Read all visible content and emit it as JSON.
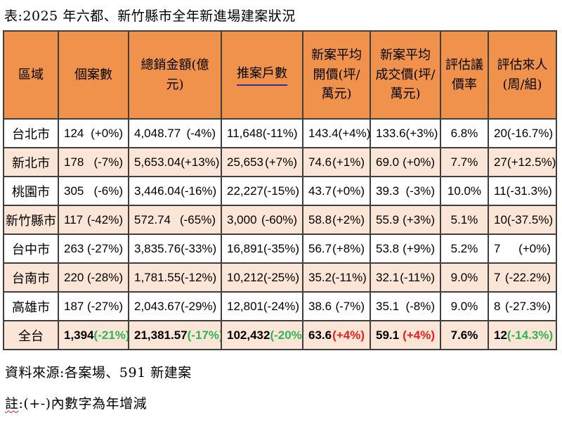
{
  "title": "表:2025 年六都、新竹縣市全年新進場建案狀況",
  "colors": {
    "header_bg": "#F0914C",
    "alt_row_bg": "#FBE5D6",
    "border": "#3F3F3F",
    "green": "#2FB457",
    "red": "#E8201D",
    "header_underline": "#31309B"
  },
  "table": {
    "columns": [
      "區域",
      "個案數",
      "總銷金額(億元)",
      "推案戶數",
      "新案平均開價(坪/萬元)",
      "新案平均成交價(坪/萬元)",
      "評估議價率",
      "評估來人(周/組)"
    ],
    "rows": [
      {
        "region": "台北市",
        "total": false,
        "cells": [
          {
            "v": "124",
            "p": "(+0%)"
          },
          {
            "v": "4,048.77",
            "p": "(-4%)"
          },
          {
            "v": "11,648",
            "p": "(-11%)"
          },
          {
            "v": "143.4",
            "p": "(+4%)"
          },
          {
            "v": "133.6",
            "p": "(+3%)"
          },
          {
            "v": "6.8%"
          },
          {
            "v": "20",
            "p": "(-16.7%)"
          }
        ]
      },
      {
        "region": "新北市",
        "total": false,
        "cells": [
          {
            "v": "178",
            "p": "(-7%)"
          },
          {
            "v": "5,653.04",
            "p": "(+13%)"
          },
          {
            "v": "25,653",
            "p": "(+7%)"
          },
          {
            "v": "74.6",
            "p": "(+1%)"
          },
          {
            "v": "69.0",
            "p": "(+0%)"
          },
          {
            "v": "7.7%"
          },
          {
            "v": "27",
            "p": "(+12.5%)"
          }
        ]
      },
      {
        "region": "桃園市",
        "total": false,
        "cells": [
          {
            "v": "305",
            "p": "(-6%)"
          },
          {
            "v": "3,446.04",
            "p": "(-16%)"
          },
          {
            "v": "22,227",
            "p": "(-15%)"
          },
          {
            "v": "43.7",
            "p": "(+0%)"
          },
          {
            "v": "39.3",
            "p": "(-3%)"
          },
          {
            "v": "10.0%"
          },
          {
            "v": "11",
            "p": "(-31.3%)"
          }
        ]
      },
      {
        "region": "新竹縣市",
        "total": false,
        "cells": [
          {
            "v": "117",
            "p": "(-42%)"
          },
          {
            "v": "572.74",
            "p": "(-65%)"
          },
          {
            "v": "3,000",
            "p": "(-60%)"
          },
          {
            "v": "58.8",
            "p": "(+2%)"
          },
          {
            "v": "55.9",
            "p": "(+3%)"
          },
          {
            "v": "5.1%"
          },
          {
            "v": "10",
            "p": "(-37.5%)"
          }
        ]
      },
      {
        "region": "台中市",
        "total": false,
        "cells": [
          {
            "v": "263",
            "p": "(-27%)"
          },
          {
            "v": "3,835.76",
            "p": "(-33%)"
          },
          {
            "v": "16,891",
            "p": "(-35%)"
          },
          {
            "v": "56.7",
            "p": "(+8%)"
          },
          {
            "v": "53.8",
            "p": "(+9%)"
          },
          {
            "v": "5.2%"
          },
          {
            "v": "7",
            "p": "(+0%)"
          }
        ]
      },
      {
        "region": "台南市",
        "total": false,
        "cells": [
          {
            "v": "220",
            "p": "(-28%)"
          },
          {
            "v": "1,781.55",
            "p": "(-12%)"
          },
          {
            "v": "10,212",
            "p": "(-25%)"
          },
          {
            "v": "35.2",
            "p": "(-11%)"
          },
          {
            "v": "32.1",
            "p": "(-11%)"
          },
          {
            "v": "9.0%"
          },
          {
            "v": "7",
            "p": "(-22.2%)"
          }
        ]
      },
      {
        "region": "高雄市",
        "total": false,
        "cells": [
          {
            "v": "187",
            "p": "(-27%)"
          },
          {
            "v": "2,043.67",
            "p": "(-29%)"
          },
          {
            "v": "12,801",
            "p": "(-24%)"
          },
          {
            "v": "38.6",
            "p": "(-7%)"
          },
          {
            "v": "35.1",
            "p": "(-8%)"
          },
          {
            "v": "9.0%"
          },
          {
            "v": "8",
            "p": "(-27.3%)"
          }
        ]
      },
      {
        "region": "全台",
        "total": true,
        "cells": [
          {
            "v": "1,394",
            "p": "(-21%)",
            "pc": "green"
          },
          {
            "v": "21,381.57",
            "p": "(-17%)",
            "pc": "green"
          },
          {
            "v": "102,432",
            "p": "(-20%)",
            "pc": "green"
          },
          {
            "v": "63.6",
            "p": "(+4%)",
            "pc": "red"
          },
          {
            "v": "59.1",
            "p": "(+4%)",
            "pc": "red"
          },
          {
            "v": "7.6%"
          },
          {
            "v": "12",
            "p": "(-14.3%)",
            "pc": "green"
          }
        ]
      }
    ]
  },
  "footnotes": {
    "source": "資料來源:各案場、591 新建案",
    "note_word": "註",
    "note_rest": ":(+-)內數字為年增減"
  },
  "chart_data": {
    "type": "table",
    "title": "表:2025 年六都、新竹縣市全年新進場建案狀況",
    "columns": [
      "區域",
      "個案數",
      "總銷金額(億元)",
      "推案戶數",
      "新案平均開價(坪/萬元)",
      "新案平均成交價(坪/萬元)",
      "評估議價率",
      "評估來人(周/組)"
    ],
    "rows": [
      [
        "台北市",
        "124 (+0%)",
        "4,048.77 (-4%)",
        "11,648 (-11%)",
        "143.4 (+4%)",
        "133.6 (+3%)",
        "6.8%",
        "20 (-16.7%)"
      ],
      [
        "新北市",
        "178 (-7%)",
        "5,653.04 (+13%)",
        "25,653 (+7%)",
        "74.6 (+1%)",
        "69.0 (+0%)",
        "7.7%",
        "27 (+12.5%)"
      ],
      [
        "桃園市",
        "305 (-6%)",
        "3,446.04 (-16%)",
        "22,227 (-15%)",
        "43.7 (+0%)",
        "39.3 (-3%)",
        "10.0%",
        "11 (-31.3%)"
      ],
      [
        "新竹縣市",
        "117 (-42%)",
        "572.74 (-65%)",
        "3,000 (-60%)",
        "58.8 (+2%)",
        "55.9 (+3%)",
        "5.1%",
        "10 (-37.5%)"
      ],
      [
        "台中市",
        "263 (-27%)",
        "3,835.76 (-33%)",
        "16,891 (-35%)",
        "56.7 (+8%)",
        "53.8 (+9%)",
        "5.2%",
        "7 (+0%)"
      ],
      [
        "台南市",
        "220 (-28%)",
        "1,781.55 (-12%)",
        "10,212 (-25%)",
        "35.2 (-11%)",
        "32.1 (-11%)",
        "9.0%",
        "7 (-22.2%)"
      ],
      [
        "高雄市",
        "187 (-27%)",
        "2,043.67 (-29%)",
        "12,801 (-24%)",
        "38.6 (-7%)",
        "35.1 (-8%)",
        "9.0%",
        "8 (-27.3%)"
      ],
      [
        "全台",
        "1,394 (-21%)",
        "21,381.57 (-17%)",
        "102,432 (-20%)",
        "63.6 (+4%)",
        "59.1 (+4%)",
        "7.6%",
        "12 (-14.3%)"
      ]
    ],
    "notes": [
      "資料來源:各案場、591 新建案",
      "註:(+-)內數字為年增減"
    ]
  }
}
